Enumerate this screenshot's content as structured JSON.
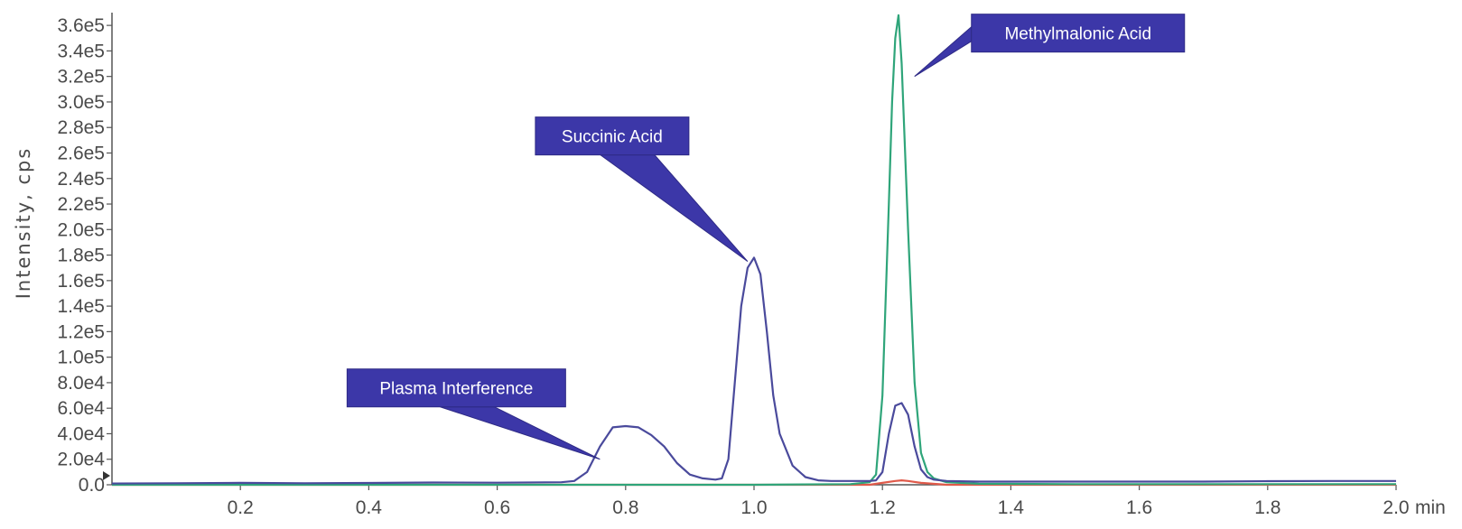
{
  "chart_data": {
    "type": "line",
    "ylabel": "Intensity, cps",
    "xunit": "min",
    "xlim": [
      0.0,
      2.0
    ],
    "ylim": [
      0,
      370000
    ],
    "x_ticks": [
      0.2,
      0.4,
      0.6,
      0.8,
      1.0,
      1.2,
      1.4,
      1.6,
      1.8,
      2.0
    ],
    "x_tick_labels": [
      "0.2",
      "0.4",
      "0.6",
      "0.8",
      "1.0",
      "1.2",
      "1.4",
      "1.6",
      "1.8",
      "2.0"
    ],
    "y_ticks": [
      0,
      20000,
      40000,
      60000,
      80000,
      100000,
      120000,
      140000,
      160000,
      180000,
      200000,
      220000,
      240000,
      260000,
      280000,
      300000,
      320000,
      340000,
      360000
    ],
    "y_tick_labels": [
      "0.0",
      "2.0e4",
      "4.0e4",
      "6.0e4",
      "8.0e4",
      "1.0e5",
      "1.2e5",
      "1.4e5",
      "1.6e5",
      "1.8e5",
      "2.0e5",
      "2.2e5",
      "2.4e5",
      "2.6e5",
      "2.8e5",
      "3.0e5",
      "3.2e5",
      "3.4e5",
      "3.6e5"
    ],
    "grid": false,
    "series": [
      {
        "color": "#4a4a9c",
        "x": [
          0.0,
          0.1,
          0.2,
          0.3,
          0.4,
          0.5,
          0.6,
          0.7,
          0.72,
          0.74,
          0.76,
          0.78,
          0.8,
          0.82,
          0.84,
          0.86,
          0.88,
          0.9,
          0.92,
          0.94,
          0.95,
          0.96,
          0.97,
          0.98,
          0.99,
          1.0,
          1.01,
          1.02,
          1.03,
          1.04,
          1.06,
          1.08,
          1.1,
          1.12,
          1.14,
          1.16,
          1.18,
          1.19,
          1.2,
          1.21,
          1.22,
          1.23,
          1.24,
          1.25,
          1.26,
          1.27,
          1.28,
          1.3,
          1.35,
          1.4,
          1.5,
          1.6,
          1.7,
          1.8,
          1.9,
          2.0
        ],
        "y": [
          1000,
          1200,
          1500,
          1200,
          1400,
          1800,
          1600,
          2000,
          3000,
          10000,
          30000,
          45000,
          46000,
          45000,
          39000,
          30000,
          17000,
          8000,
          5000,
          4000,
          5000,
          20000,
          80000,
          140000,
          170000,
          178000,
          165000,
          120000,
          70000,
          40000,
          15000,
          6000,
          3500,
          3000,
          3000,
          3000,
          3000,
          3500,
          10000,
          40000,
          62000,
          64000,
          55000,
          30000,
          12000,
          6000,
          4000,
          3000,
          2500,
          2500,
          2500,
          2500,
          2500,
          2800,
          3000,
          3000
        ]
      },
      {
        "color": "#2fa57a",
        "x": [
          0.0,
          0.5,
          1.0,
          1.15,
          1.18,
          1.19,
          1.2,
          1.21,
          1.215,
          1.22,
          1.225,
          1.23,
          1.24,
          1.25,
          1.26,
          1.27,
          1.28,
          1.3,
          1.35,
          1.5,
          2.0
        ],
        "y": [
          0,
          0,
          0,
          500,
          2000,
          8000,
          70000,
          220000,
          300000,
          350000,
          368000,
          330000,
          200000,
          80000,
          25000,
          10000,
          5000,
          2000,
          800,
          500,
          500
        ]
      },
      {
        "color": "#e05a4a",
        "x": [
          0.0,
          1.18,
          1.2,
          1.22,
          1.23,
          1.24,
          1.26,
          1.3,
          2.0
        ],
        "y": [
          0,
          0,
          1500,
          3000,
          3500,
          3000,
          1500,
          0,
          0
        ]
      }
    ],
    "annotations": [
      {
        "text": "Plasma Interference",
        "x": 0.76,
        "y": 20000
      },
      {
        "text": "Succinic Acid",
        "x": 0.99,
        "y": 175000
      },
      {
        "text": "Methylmalonic Acid",
        "x": 1.25,
        "y": 320000
      }
    ]
  }
}
